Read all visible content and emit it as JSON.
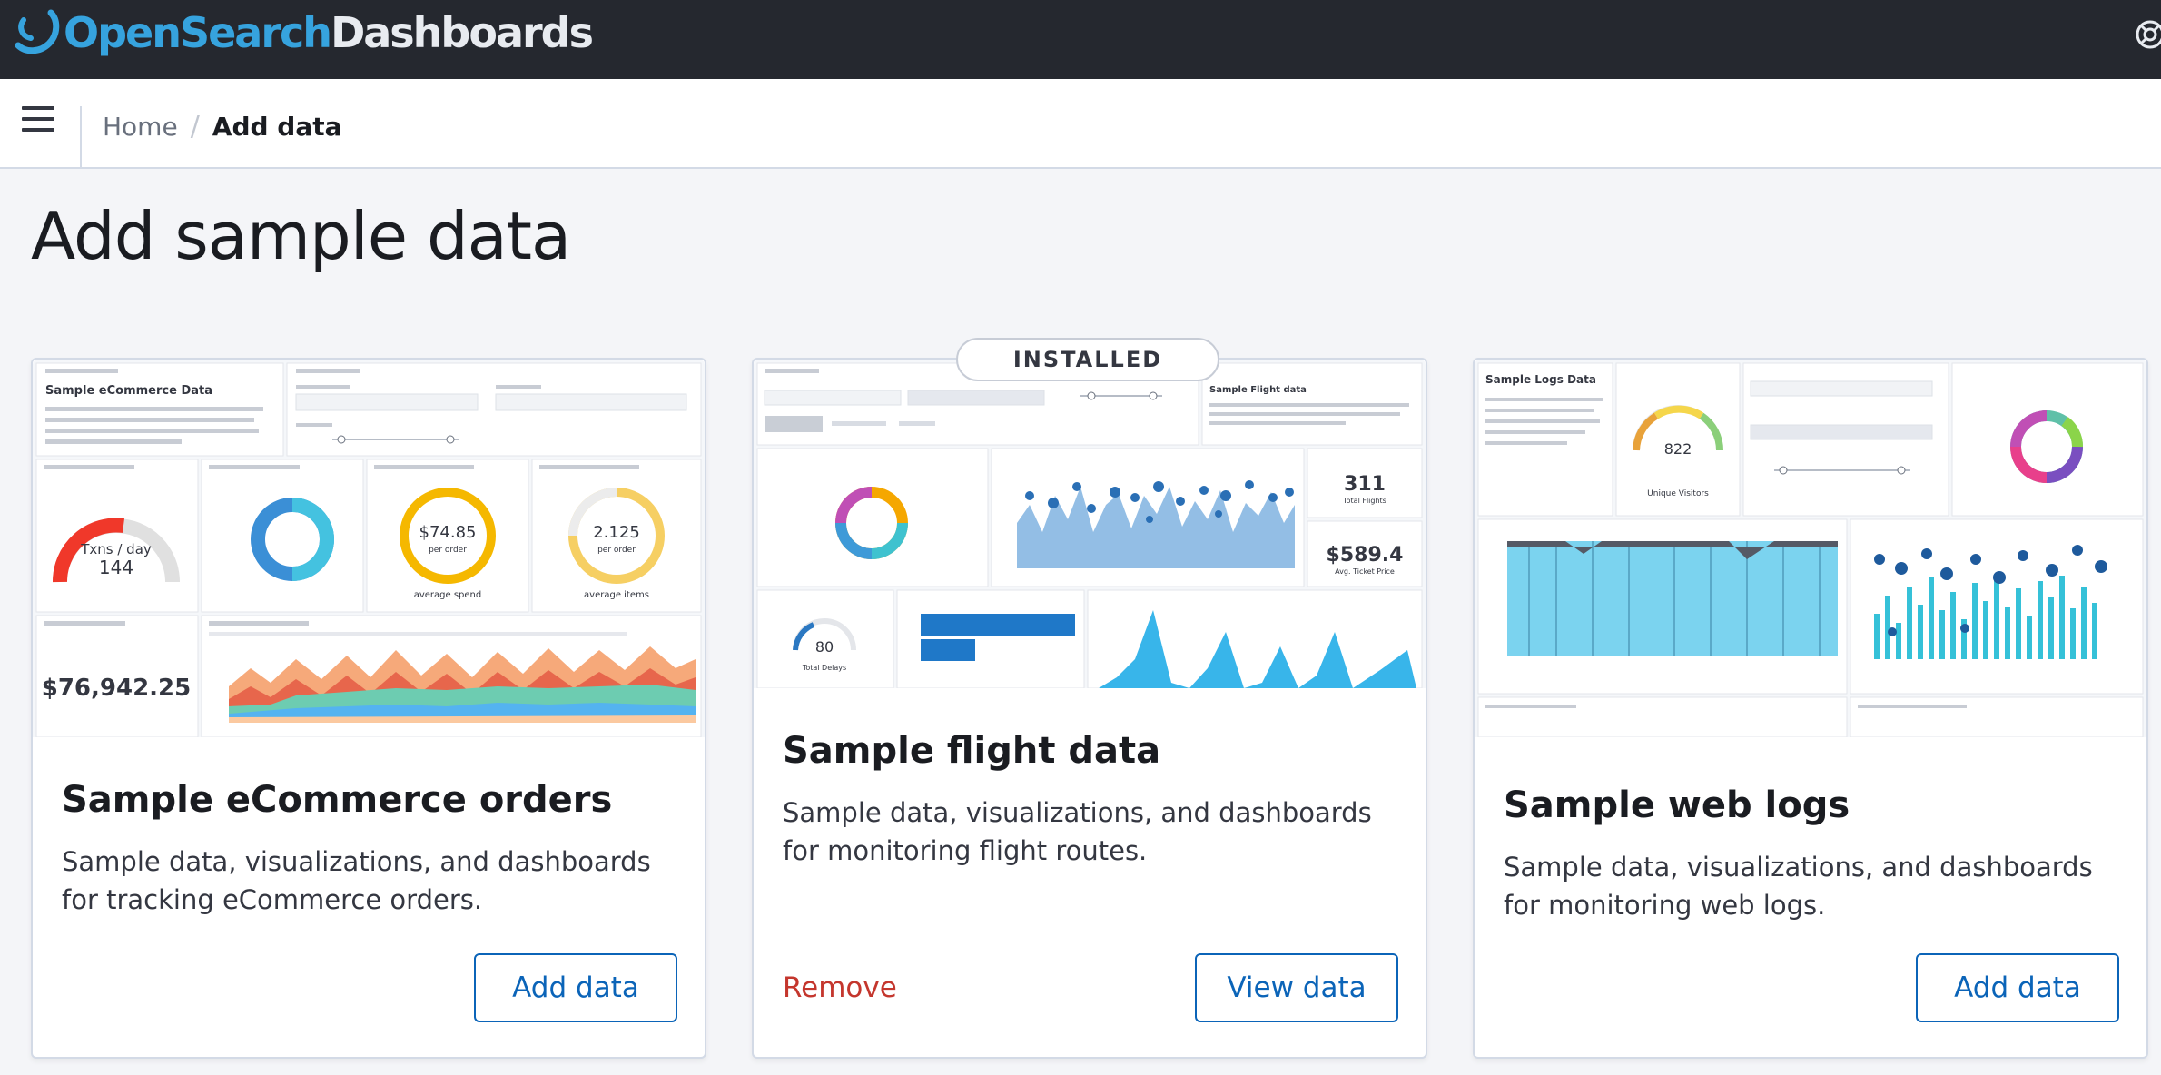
{
  "header": {
    "logo_part1": "OpenSearch",
    "logo_part2": "Dashboards"
  },
  "breadcrumbs": {
    "home": "Home",
    "separator": "/",
    "current": "Add data"
  },
  "page": {
    "title": "Add sample data"
  },
  "cards": [
    {
      "title": "Sample eCommerce orders",
      "description": "Sample data, visualizations, and dashboards for tracking eCommerce orders.",
      "button": "Add data",
      "preview": {
        "markdown_title": "Sample eCommerce Data",
        "kpi_label": "Txns / day",
        "kpi_value": "144",
        "avg_price": "$74.85",
        "avg_price_sub": "per order",
        "avg_price_caption": "average spend",
        "avg_qty": "2.125",
        "avg_qty_sub": "per order",
        "avg_qty_caption": "average items",
        "revenue": "$76,942.25"
      }
    },
    {
      "title": "Sample flight data",
      "description": "Sample data, visualizations, and dashboards for monitoring flight routes.",
      "badge": "INSTALLED",
      "remove_label": "Remove",
      "button": "View data",
      "preview": {
        "instructions_title": "Sample Flight data",
        "total_flights": "311",
        "total_flights_label": "Total Flights",
        "avg_price": "$589.4",
        "avg_price_label": "Avg. Ticket Price",
        "delays": "80",
        "delays_label": "Total Delays"
      }
    },
    {
      "title": "Sample web logs",
      "description": "Sample data, visualizations, and dashboards for monitoring web logs.",
      "button": "Add data",
      "preview": {
        "markdown_title": "Sample Logs Data",
        "visitors": "822",
        "visitors_label": "Unique Visitors"
      }
    }
  ],
  "colors": {
    "topbar": "#25282f",
    "brand_blue": "#36a3de",
    "primary": "#0b64b8",
    "danger": "#c4362d"
  }
}
